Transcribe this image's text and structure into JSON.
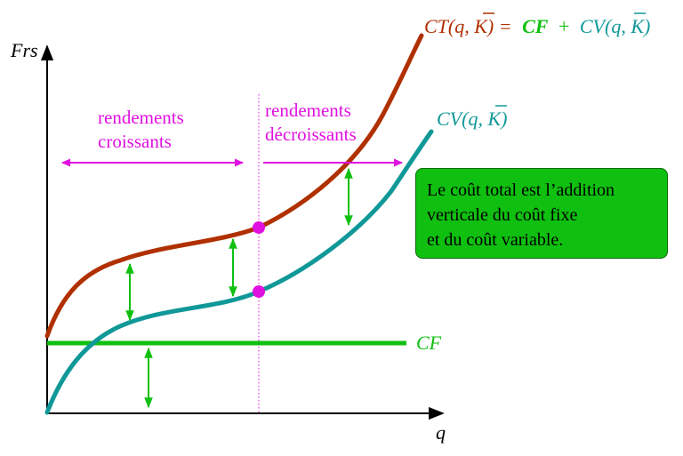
{
  "axes": {
    "y_label": "Frs",
    "x_label": "q"
  },
  "labels": {
    "ct_part1": "CT(q, K) =",
    "ct_bar_char": "K",
    "ct_cf": "CF",
    "ct_plus": "+",
    "ct_cv": "CV(q, K)",
    "cv_curve": "CV(q, K)",
    "cf_line": "CF",
    "rendements_croissants_1": "rendements",
    "rendements_croissants_2": "croissants",
    "rendements_decroissants_1": "rendements",
    "rendements_decroissants_2": "décroissants"
  },
  "note": {
    "line1": "Le coût total est l’addition",
    "line2": "verticale du coût fixe",
    "line3": "et du coût variable."
  },
  "colors": {
    "ct_curve": "#b03000",
    "cv_curve": "#109898",
    "cf_line": "#10c010",
    "arrows_vertical": "#10c010",
    "magenta": "#e010e0",
    "note_bg": "#10c010",
    "axis": "#000000"
  }
}
